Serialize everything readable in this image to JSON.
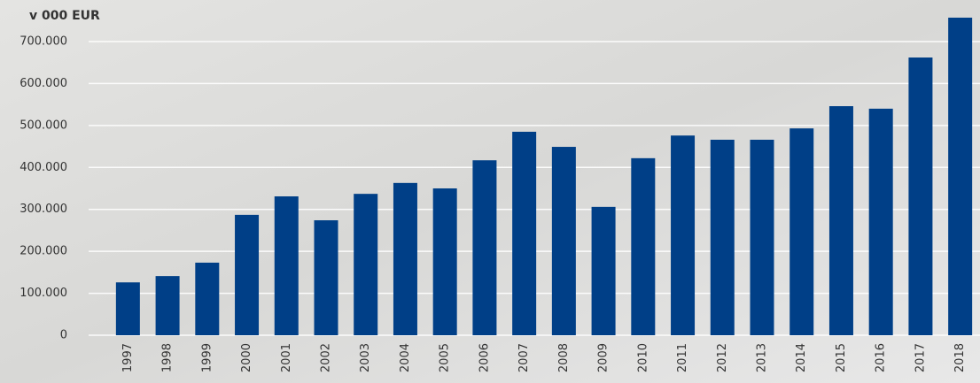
{
  "chart_data": {
    "type": "bar",
    "y_axis_label": "v 000 EUR",
    "categories": [
      "1997",
      "1998",
      "1999",
      "2000",
      "2001",
      "2002",
      "2003",
      "2004",
      "2005",
      "2006",
      "2007",
      "2008",
      "2009",
      "2010",
      "2011",
      "2012",
      "2013",
      "2014",
      "2015",
      "2016",
      "2017",
      "2018"
    ],
    "values": [
      126000,
      141000,
      173000,
      287000,
      331000,
      274000,
      337000,
      363000,
      350000,
      417000,
      485000,
      449000,
      306000,
      422000,
      476000,
      466000,
      466000,
      493000,
      546000,
      540000,
      662000,
      757000
    ],
    "color": "#003f87",
    "ylim": [
      0,
      760000
    ],
    "yticks": [
      0,
      {
        "value": 100000,
        "label": "100.000"
      },
      {
        "value": 200000,
        "label": "200.000"
      },
      {
        "value": 300000,
        "label": "300.000"
      },
      {
        "value": 400000,
        "label": "400.000"
      },
      {
        "value": 500000,
        "label": "500.000"
      },
      {
        "value": 600000,
        "label": "600.000"
      },
      {
        "value": 700000,
        "label": "700.000"
      }
    ],
    "grid": true
  }
}
